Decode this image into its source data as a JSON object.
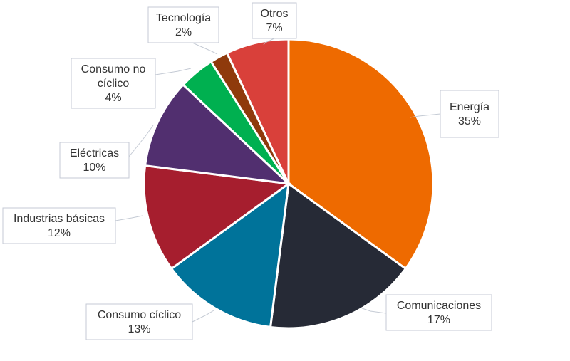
{
  "chart_data": {
    "type": "pie",
    "title": "",
    "legend": "none",
    "slices": [
      {
        "label": "Energía",
        "percent_label": "35%",
        "value": 35,
        "color": "#ee6a00"
      },
      {
        "label": "Comunicaciones",
        "percent_label": "17%",
        "value": 17,
        "color": "#262a36"
      },
      {
        "label": "Consumo cíclico",
        "percent_label": "13%",
        "value": 13,
        "color": "#00739a"
      },
      {
        "label": "Industrias básicas",
        "percent_label": "12%",
        "value": 12,
        "color": "#a61e2e"
      },
      {
        "label": "Eléctricas",
        "percent_label": "10%",
        "value": 10,
        "color": "#512f6f"
      },
      {
        "label": "Consumo no cíclico",
        "label_lines": [
          "Consumo no",
          "cíclico"
        ],
        "percent_label": "4%",
        "value": 4,
        "color": "#00b050"
      },
      {
        "label": "Tecnología",
        "percent_label": "2%",
        "value": 2,
        "color": "#8f3a0c"
      },
      {
        "label": "Otros",
        "percent_label": "7%",
        "value": 7,
        "color": "#d9403a"
      }
    ]
  }
}
